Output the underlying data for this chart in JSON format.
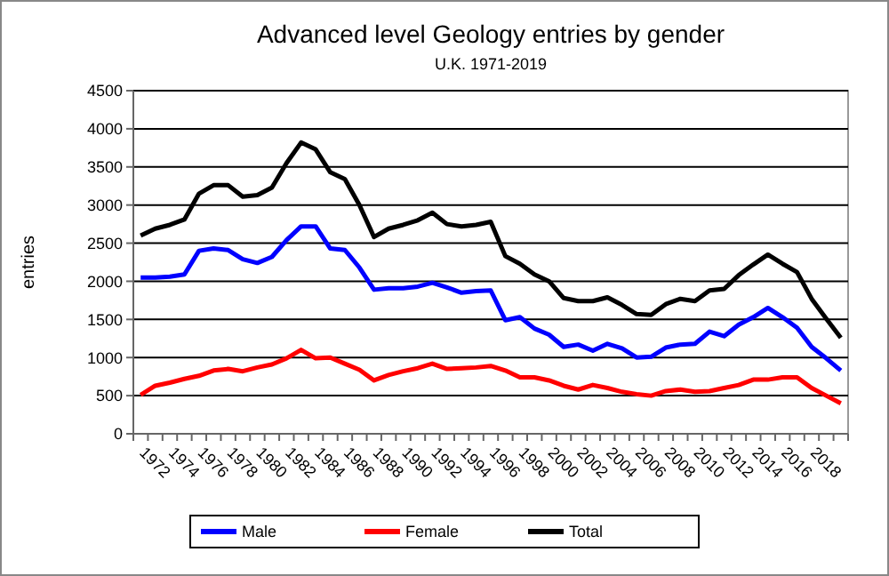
{
  "chart_data": {
    "type": "line",
    "title": "Advanced level Geology entries by gender",
    "subtitle": "U.K. 1971-2019",
    "ylabel": "entries",
    "categories": [
      null,
      "1972",
      null,
      "1974",
      null,
      "1976",
      null,
      "1978",
      null,
      "1980",
      null,
      "1982",
      null,
      "1984",
      null,
      "1986",
      null,
      "1988",
      null,
      "1990",
      null,
      "1992",
      null,
      "1994",
      null,
      "1996",
      null,
      "1998",
      null,
      "2000",
      null,
      "2002",
      null,
      "2004",
      null,
      "2006",
      null,
      "2008",
      null,
      "2010",
      null,
      "2012",
      null,
      "2014",
      null,
      "2016",
      null,
      "2018",
      null
    ],
    "series": [
      {
        "name": "Male",
        "color": "#0000ff",
        "values": [
          2050,
          2050,
          2060,
          2090,
          2400,
          2430,
          2410,
          2290,
          2240,
          2320,
          2540,
          2720,
          2720,
          2430,
          2410,
          2180,
          1890,
          1910,
          1910,
          1930,
          1980,
          1920,
          1850,
          1870,
          1880,
          1490,
          1530,
          1380,
          1300,
          1140,
          1170,
          1090,
          1180,
          1120,
          1000,
          1010,
          1130,
          1170,
          1180,
          1340,
          1280,
          1430,
          1530,
          1650,
          1530,
          1390,
          1140,
          990,
          830
        ]
      },
      {
        "name": "Female",
        "color": "#ff0000",
        "values": [
          510,
          630,
          670,
          720,
          760,
          830,
          850,
          820,
          870,
          910,
          990,
          1100,
          990,
          1000,
          920,
          840,
          700,
          770,
          820,
          860,
          920,
          850,
          860,
          870,
          890,
          830,
          740,
          740,
          700,
          630,
          580,
          640,
          600,
          550,
          520,
          500,
          560,
          580,
          550,
          560,
          600,
          640,
          710,
          710,
          740,
          740,
          600,
          500,
          400
        ]
      },
      {
        "name": "Total",
        "color": "#000000",
        "values": [
          2600,
          2690,
          2740,
          2810,
          3150,
          3260,
          3260,
          3110,
          3130,
          3230,
          3550,
          3820,
          3730,
          3430,
          3340,
          3000,
          2580,
          2690,
          2740,
          2800,
          2900,
          2750,
          2720,
          2740,
          2780,
          2330,
          2230,
          2090,
          2000,
          1780,
          1740,
          1740,
          1790,
          1690,
          1570,
          1560,
          1700,
          1770,
          1740,
          1880,
          1900,
          2080,
          2220,
          2350,
          2230,
          2120,
          1770,
          1510,
          1260
        ]
      }
    ],
    "ylim": [
      0,
      4500
    ],
    "yticks": [
      0,
      500,
      1000,
      1500,
      2000,
      2500,
      3000,
      3500,
      4000,
      4500
    ],
    "grid": "y",
    "legend": "bottom",
    "marker": "none",
    "line_style": "solid"
  }
}
